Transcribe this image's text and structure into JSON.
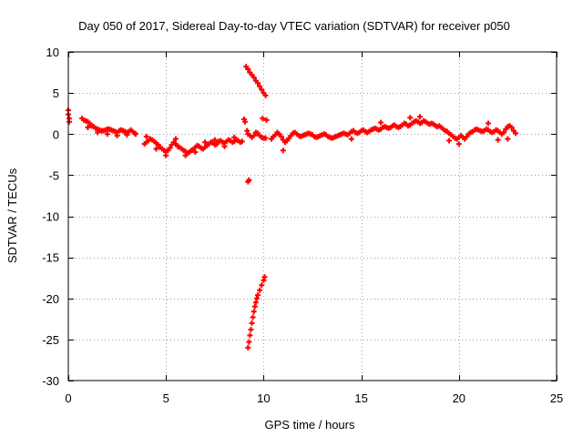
{
  "chart_data": {
    "type": "scatter",
    "title": "Day 050 of 2017, Sidereal Day-to-day VTEC variation (SDTVAR) for receiver p050",
    "xlabel": "GPS time / hours",
    "ylabel": "SDTVAR / TECUs",
    "xlim": [
      0,
      25
    ],
    "ylim": [
      -30,
      10
    ],
    "xticks": [
      0,
      5,
      10,
      15,
      20,
      25
    ],
    "yticks": [
      10,
      5,
      0,
      -5,
      -10,
      -15,
      -20,
      -25,
      -30
    ],
    "grid": true,
    "legend": "none",
    "marker": "+",
    "colors": {
      "series": "#ff0000",
      "grid": "#a0a0a0",
      "axes": "#000000"
    },
    "series": [
      {
        "name": "SDTVAR",
        "points": [
          [
            0.0,
            2.9
          ],
          [
            0.0,
            2.4
          ],
          [
            0.05,
            1.9
          ],
          [
            0.05,
            1.5
          ],
          [
            0.7,
            1.9
          ],
          [
            0.8,
            1.7
          ],
          [
            0.9,
            1.6
          ],
          [
            1.0,
            1.5
          ],
          [
            1.1,
            1.3
          ],
          [
            1.2,
            1.0
          ],
          [
            1.3,
            0.9
          ],
          [
            1.4,
            0.7
          ],
          [
            1.5,
            0.6
          ],
          [
            1.6,
            0.5
          ],
          [
            1.7,
            0.4
          ],
          [
            1.8,
            0.4
          ],
          [
            1.9,
            0.5
          ],
          [
            2.0,
            0.6
          ],
          [
            2.1,
            0.6
          ],
          [
            2.2,
            0.5
          ],
          [
            2.3,
            0.4
          ],
          [
            2.4,
            0.3
          ],
          [
            2.5,
            0.2
          ],
          [
            2.6,
            0.4
          ],
          [
            2.7,
            0.5
          ],
          [
            2.8,
            0.4
          ],
          [
            2.9,
            0.3
          ],
          [
            3.0,
            0.2
          ],
          [
            3.1,
            0.3
          ],
          [
            3.2,
            0.5
          ],
          [
            3.3,
            0.3
          ],
          [
            3.4,
            0.1
          ],
          [
            3.45,
            0.0
          ],
          [
            1.0,
            0.8
          ],
          [
            1.5,
            0.2
          ],
          [
            2.0,
            0.0
          ],
          [
            2.5,
            -0.2
          ],
          [
            3.0,
            -0.1
          ],
          [
            3.9,
            -1.2
          ],
          [
            4.0,
            -1.0
          ],
          [
            4.1,
            -0.8
          ],
          [
            4.2,
            -0.6
          ],
          [
            4.3,
            -0.7
          ],
          [
            4.4,
            -0.9
          ],
          [
            4.5,
            -1.1
          ],
          [
            4.6,
            -1.3
          ],
          [
            4.7,
            -1.6
          ],
          [
            4.8,
            -1.8
          ],
          [
            4.9,
            -2.0
          ],
          [
            5.0,
            -2.1
          ],
          [
            5.1,
            -2.0
          ],
          [
            5.2,
            -1.7
          ],
          [
            5.3,
            -1.3
          ],
          [
            5.4,
            -1.0
          ],
          [
            5.5,
            -1.2
          ],
          [
            5.6,
            -1.5
          ],
          [
            5.7,
            -1.6
          ],
          [
            5.8,
            -1.8
          ],
          [
            5.9,
            -2.0
          ],
          [
            6.0,
            -2.1
          ],
          [
            6.1,
            -2.3
          ],
          [
            6.2,
            -2.2
          ],
          [
            6.3,
            -2.0
          ],
          [
            6.4,
            -1.9
          ],
          [
            6.5,
            -1.6
          ],
          [
            6.6,
            -1.4
          ],
          [
            6.7,
            -1.5
          ],
          [
            6.8,
            -1.7
          ],
          [
            6.9,
            -1.8
          ],
          [
            7.0,
            -1.6
          ],
          [
            7.1,
            -1.4
          ],
          [
            7.2,
            -1.2
          ],
          [
            7.3,
            -1.0
          ],
          [
            7.4,
            -1.1
          ],
          [
            7.5,
            -1.3
          ],
          [
            7.6,
            -1.2
          ],
          [
            7.7,
            -0.9
          ],
          [
            7.8,
            -0.8
          ],
          [
            7.9,
            -1.0
          ],
          [
            8.0,
            -1.1
          ],
          [
            8.1,
            -0.9
          ],
          [
            8.2,
            -0.7
          ],
          [
            8.3,
            -0.8
          ],
          [
            8.4,
            -1.0
          ],
          [
            8.5,
            -0.9
          ],
          [
            8.6,
            -0.7
          ],
          [
            8.7,
            -0.8
          ],
          [
            8.8,
            -1.0
          ],
          [
            8.9,
            -0.9
          ],
          [
            4.0,
            -0.3
          ],
          [
            4.5,
            -1.8
          ],
          [
            5.0,
            -2.6
          ],
          [
            5.5,
            -0.6
          ],
          [
            6.0,
            -2.6
          ],
          [
            6.5,
            -2.2
          ],
          [
            7.0,
            -1.0
          ],
          [
            7.5,
            -0.7
          ],
          [
            8.0,
            -1.5
          ],
          [
            8.5,
            -0.4
          ],
          [
            9.1,
            8.2
          ],
          [
            9.2,
            7.9
          ],
          [
            9.3,
            7.5
          ],
          [
            9.4,
            7.2
          ],
          [
            9.5,
            6.9
          ],
          [
            9.6,
            6.5
          ],
          [
            9.7,
            6.2
          ],
          [
            9.8,
            5.8
          ],
          [
            9.9,
            5.4
          ],
          [
            10.0,
            5.0
          ],
          [
            10.1,
            4.7
          ],
          [
            9.2,
            -5.8
          ],
          [
            9.25,
            -5.6
          ],
          [
            9.2,
            -26.0
          ],
          [
            9.25,
            -25.3
          ],
          [
            9.3,
            -24.5
          ],
          [
            9.35,
            -23.8
          ],
          [
            9.4,
            -23.0
          ],
          [
            9.45,
            -22.3
          ],
          [
            9.5,
            -21.6
          ],
          [
            9.55,
            -21.0
          ],
          [
            9.6,
            -20.5
          ],
          [
            9.65,
            -20.0
          ],
          [
            9.7,
            -19.6
          ],
          [
            9.8,
            -19.0
          ],
          [
            9.9,
            -18.4
          ],
          [
            10.0,
            -17.8
          ],
          [
            10.05,
            -17.4
          ],
          [
            9.0,
            1.8
          ],
          [
            9.05,
            1.5
          ],
          [
            9.15,
            0.4
          ],
          [
            9.2,
            0.0
          ],
          [
            9.3,
            -0.2
          ],
          [
            9.4,
            -0.4
          ],
          [
            9.5,
            -0.2
          ],
          [
            9.6,
            0.2
          ],
          [
            9.7,
            0.1
          ],
          [
            9.8,
            -0.2
          ],
          [
            9.9,
            -0.4
          ],
          [
            10.0,
            -0.5
          ],
          [
            10.1,
            -0.5
          ],
          [
            9.95,
            1.9
          ],
          [
            10.15,
            1.7
          ],
          [
            10.4,
            -0.6
          ],
          [
            10.5,
            -0.3
          ],
          [
            10.6,
            -0.1
          ],
          [
            10.7,
            0.2
          ],
          [
            10.8,
            0.0
          ],
          [
            10.9,
            -0.3
          ],
          [
            11.0,
            -0.7
          ],
          [
            11.1,
            -1.0
          ],
          [
            11.2,
            -0.8
          ],
          [
            11.3,
            -0.5
          ],
          [
            11.4,
            -0.2
          ],
          [
            11.5,
            0.1
          ],
          [
            11.6,
            0.2
          ],
          [
            11.7,
            0.0
          ],
          [
            11.8,
            -0.2
          ],
          [
            11.9,
            -0.3
          ],
          [
            12.0,
            -0.2
          ],
          [
            12.1,
            -0.1
          ],
          [
            12.2,
            0.0
          ],
          [
            12.3,
            0.1
          ],
          [
            12.4,
            0.0
          ],
          [
            12.5,
            -0.1
          ],
          [
            12.6,
            -0.3
          ],
          [
            12.7,
            -0.4
          ],
          [
            12.8,
            -0.3
          ],
          [
            12.9,
            -0.2
          ],
          [
            13.0,
            -0.1
          ],
          [
            13.1,
            0.0
          ],
          [
            13.2,
            -0.1
          ],
          [
            13.3,
            -0.3
          ],
          [
            13.4,
            -0.4
          ],
          [
            13.5,
            -0.5
          ],
          [
            13.6,
            -0.4
          ],
          [
            13.7,
            -0.3
          ],
          [
            13.8,
            -0.2
          ],
          [
            13.9,
            -0.1
          ],
          [
            14.0,
            0.0
          ],
          [
            14.1,
            0.1
          ],
          [
            14.2,
            0.0
          ],
          [
            14.3,
            -0.1
          ],
          [
            14.4,
            0.1
          ],
          [
            14.5,
            0.3
          ],
          [
            14.6,
            0.4
          ],
          [
            14.7,
            0.2
          ],
          [
            14.8,
            0.1
          ],
          [
            14.9,
            0.2
          ],
          [
            15.0,
            0.4
          ],
          [
            15.1,
            0.5
          ],
          [
            15.2,
            0.3
          ],
          [
            15.3,
            0.2
          ],
          [
            15.4,
            0.3
          ],
          [
            15.5,
            0.5
          ],
          [
            15.6,
            0.6
          ],
          [
            15.7,
            0.7
          ],
          [
            15.8,
            0.6
          ],
          [
            15.9,
            0.5
          ],
          [
            16.0,
            0.6
          ],
          [
            16.1,
            0.8
          ],
          [
            16.2,
            0.9
          ],
          [
            16.3,
            0.8
          ],
          [
            16.4,
            0.7
          ],
          [
            16.5,
            0.8
          ],
          [
            16.6,
            1.0
          ],
          [
            16.7,
            1.1
          ],
          [
            16.8,
            0.9
          ],
          [
            16.9,
            0.8
          ],
          [
            17.0,
            0.9
          ],
          [
            17.1,
            1.1
          ],
          [
            17.2,
            1.3
          ],
          [
            17.3,
            1.2
          ],
          [
            17.4,
            1.0
          ],
          [
            17.5,
            1.1
          ],
          [
            17.6,
            1.3
          ],
          [
            17.7,
            1.5
          ],
          [
            17.8,
            1.6
          ],
          [
            17.9,
            1.5
          ],
          [
            18.0,
            1.3
          ],
          [
            18.1,
            1.4
          ],
          [
            18.2,
            1.6
          ],
          [
            18.3,
            1.5
          ],
          [
            18.4,
            1.3
          ],
          [
            18.5,
            1.2
          ],
          [
            18.6,
            1.3
          ],
          [
            18.7,
            1.2
          ],
          [
            18.8,
            1.0
          ],
          [
            18.9,
            0.9
          ],
          [
            19.0,
            1.0
          ],
          [
            19.1,
            0.8
          ],
          [
            19.2,
            0.6
          ],
          [
            19.3,
            0.4
          ],
          [
            19.4,
            0.3
          ],
          [
            19.5,
            0.1
          ],
          [
            19.6,
            -0.1
          ],
          [
            19.7,
            -0.3
          ],
          [
            19.8,
            -0.5
          ],
          [
            19.9,
            -0.6
          ],
          [
            20.0,
            -0.4
          ],
          [
            20.1,
            -0.2
          ],
          [
            20.2,
            -0.4
          ],
          [
            20.3,
            -0.6
          ],
          [
            20.4,
            -0.3
          ],
          [
            20.5,
            0.0
          ],
          [
            20.6,
            0.2
          ],
          [
            20.7,
            0.3
          ],
          [
            20.8,
            0.5
          ],
          [
            20.9,
            0.6
          ],
          [
            21.0,
            0.5
          ],
          [
            21.1,
            0.4
          ],
          [
            21.2,
            0.3
          ],
          [
            21.3,
            0.4
          ],
          [
            21.4,
            0.6
          ],
          [
            21.5,
            0.5
          ],
          [
            21.6,
            0.3
          ],
          [
            21.7,
            0.2
          ],
          [
            21.8,
            0.3
          ],
          [
            21.9,
            0.5
          ],
          [
            22.0,
            0.4
          ],
          [
            22.1,
            0.2
          ],
          [
            22.2,
            0.0
          ],
          [
            22.3,
            0.2
          ],
          [
            22.4,
            0.6
          ],
          [
            22.5,
            0.9
          ],
          [
            22.6,
            1.0
          ],
          [
            22.7,
            0.8
          ],
          [
            22.8,
            0.4
          ],
          [
            22.9,
            0.1
          ],
          [
            11.0,
            -2.0
          ],
          [
            14.5,
            -0.6
          ],
          [
            16.0,
            1.4
          ],
          [
            17.5,
            2.0
          ],
          [
            18.0,
            2.1
          ],
          [
            19.5,
            -0.8
          ],
          [
            20.0,
            -1.2
          ],
          [
            21.5,
            1.3
          ],
          [
            22.0,
            -0.7
          ],
          [
            22.5,
            -0.6
          ]
        ]
      }
    ]
  }
}
